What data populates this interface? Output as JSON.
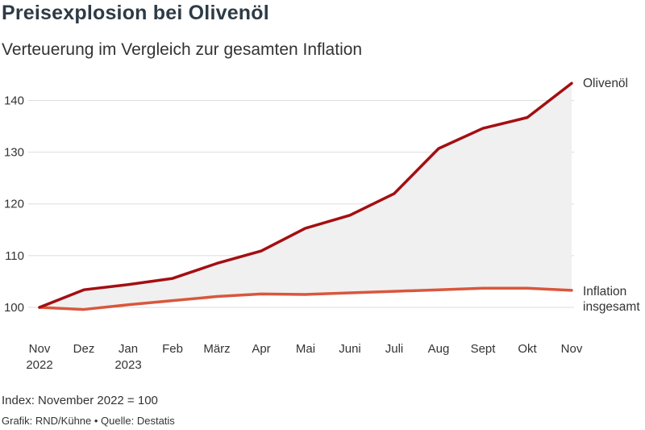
{
  "chart_data": {
    "type": "line",
    "title": "Preisexplosion bei Olivenöl",
    "subtitle": "Verteuerung im Vergleich zur gesamten Inflation",
    "categories": [
      [
        "Nov",
        "2022"
      ],
      [
        "Dez"
      ],
      [
        "Jan",
        "2023"
      ],
      [
        "Feb"
      ],
      [
        "März"
      ],
      [
        "Apr"
      ],
      [
        "Mai"
      ],
      [
        "Juni"
      ],
      [
        "Juli"
      ],
      [
        "Aug"
      ],
      [
        "Sept"
      ],
      [
        "Okt"
      ],
      [
        "Nov"
      ]
    ],
    "yticks": [
      100,
      110,
      120,
      130,
      140
    ],
    "ylim": [
      100,
      143.5
    ],
    "grid": true,
    "area_between_series": true,
    "series": [
      {
        "name": "Olivenöl",
        "color": "#a30f12",
        "values": [
          100,
          103.4,
          104.4,
          105.6,
          108.5,
          110.9,
          115.3,
          117.8,
          122.0,
          130.7,
          134.6,
          136.7,
          143.3
        ]
      },
      {
        "name": "Inflation insgesamt",
        "name_lines": [
          "Inflation",
          "insgesamt"
        ],
        "color": "#d9573c",
        "values": [
          100,
          99.6,
          100.5,
          101.3,
          102.1,
          102.6,
          102.5,
          102.8,
          103.1,
          103.4,
          103.7,
          103.7,
          103.3
        ]
      }
    ],
    "area_color": "#f0f0f0",
    "grid_color": "#dddddd"
  },
  "footer": {
    "note": "Index: November 2022 = 100",
    "source": "Grafik: RND/Kühne • Quelle: Destatis"
  }
}
